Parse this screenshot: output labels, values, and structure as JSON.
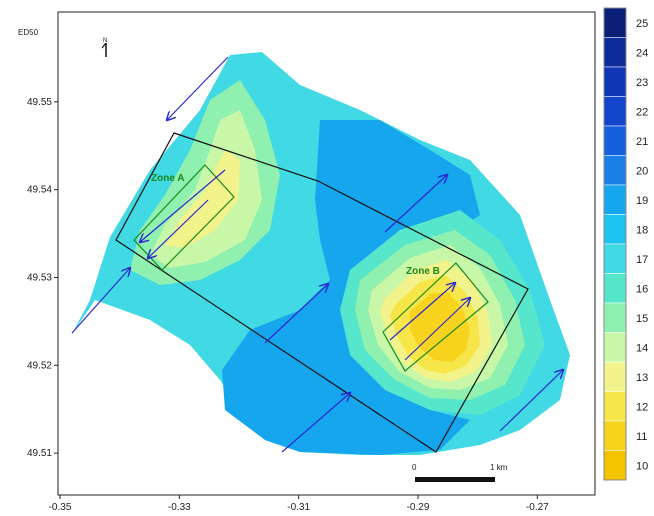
{
  "crs_label": "ED50",
  "north_arrow": {
    "icon": "north-arrow-icon",
    "label": "N"
  },
  "axes": {
    "x_ticks": [
      "-0.35",
      "-0.33",
      "-0.31",
      "-0.29",
      "-0.27"
    ],
    "y_ticks": [
      "49.55",
      "49.54",
      "49.53",
      "49.52",
      "49.51"
    ],
    "xlim": [
      -0.35,
      -0.26
    ],
    "ylim": [
      49.505,
      49.56
    ]
  },
  "zones": [
    {
      "name": "Zone A",
      "color": "#1a8a1a"
    },
    {
      "name": "Zone B",
      "color": "#1a8a1a"
    }
  ],
  "scale_bar": {
    "start_label": "0",
    "end_label": "1 km"
  },
  "legend": {
    "values": [
      "25",
      "24",
      "23",
      "22",
      "21",
      "20",
      "19",
      "18",
      "17",
      "16",
      "15",
      "14",
      "13",
      "12",
      "11",
      "10"
    ],
    "colors": [
      "#0a1f78",
      "#0d2c99",
      "#1035b5",
      "#1244cc",
      "#1560dd",
      "#1a7fe6",
      "#16a6ee",
      "#1ec4f0",
      "#40d9e4",
      "#56e6cc",
      "#8ff0b0",
      "#c8f7a8",
      "#f3f38c",
      "#f7e64a",
      "#f7d31e",
      "#f5c400"
    ]
  },
  "colors": {
    "outline": "#111111",
    "zone_outline": "#1a8a1a",
    "current_arrow": "#2a2ad0"
  },
  "chart_data": {
    "type": "heatmap",
    "xlabel": "",
    "ylabel": "",
    "xlim": [
      -0.35,
      -0.26
    ],
    "ylim": [
      49.505,
      49.56
    ],
    "colorbar_range": [
      10,
      25
    ],
    "zones": [
      {
        "name": "Zone A",
        "approx_center": [
          -0.328,
          49.532
        ]
      },
      {
        "name": "Zone B",
        "approx_center": [
          -0.284,
          49.524
        ]
      }
    ]
  }
}
